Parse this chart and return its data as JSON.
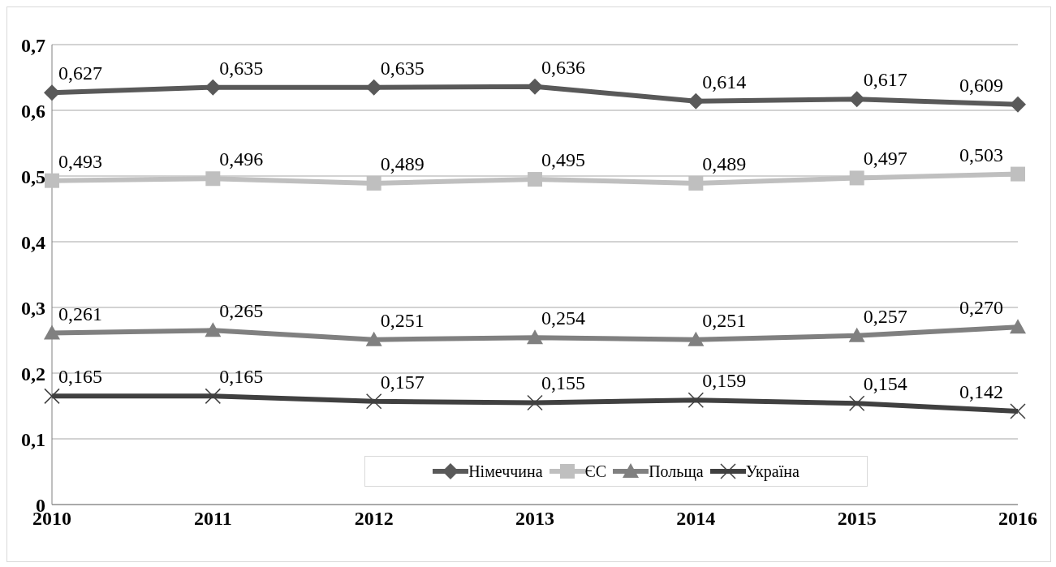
{
  "chart_data": {
    "type": "line",
    "categories": [
      "2010",
      "2011",
      "2012",
      "2013",
      "2014",
      "2015",
      "2016"
    ],
    "series": [
      {
        "name": "Німеччина",
        "color": "#595959",
        "marker": "diamond",
        "values": [
          0.627,
          0.635,
          0.635,
          0.636,
          0.614,
          0.617,
          0.609
        ],
        "value_labels": [
          "0,627",
          "0,635",
          "0,635",
          "0,636",
          "0,614",
          "0,617",
          "0,609"
        ]
      },
      {
        "name": "ЄС",
        "color": "#bfbfbf",
        "marker": "square",
        "values": [
          0.493,
          0.496,
          0.489,
          0.495,
          0.489,
          0.497,
          0.503
        ],
        "value_labels": [
          "0,493",
          "0,496",
          "0,489",
          "0,495",
          "0,489",
          "0,497",
          "0,503"
        ]
      },
      {
        "name": "Польща",
        "color": "#808080",
        "marker": "triangle",
        "values": [
          0.261,
          0.265,
          0.251,
          0.254,
          0.251,
          0.257,
          0.27
        ],
        "value_labels": [
          "0,261",
          "0,265",
          "0,251",
          "0,254",
          "0,251",
          "0,257",
          "0,270"
        ]
      },
      {
        "name": "Україна",
        "color": "#404040",
        "marker": "cross",
        "values": [
          0.165,
          0.165,
          0.157,
          0.155,
          0.159,
          0.154,
          0.142
        ],
        "value_labels": [
          "0,165",
          "0,165",
          "0,157",
          "0,155",
          "0,159",
          "0,154",
          "0,142"
        ]
      }
    ],
    "ylim": [
      0,
      0.7
    ],
    "yticks": [
      0,
      {
        "value": 0.1,
        "label": "0,1"
      },
      {
        "value": 0.2,
        "label": "0,2"
      },
      {
        "value": 0.3,
        "label": "0,3"
      },
      {
        "value": 0.4,
        "label": "0,4"
      },
      {
        "value": 0.5,
        "label": "0,5"
      },
      {
        "value": 0.6,
        "label": "0,6"
      },
      {
        "value": 0.7,
        "label": "0,7"
      }
    ],
    "grid": "y",
    "legend": "bottom",
    "line_style": "solid"
  }
}
